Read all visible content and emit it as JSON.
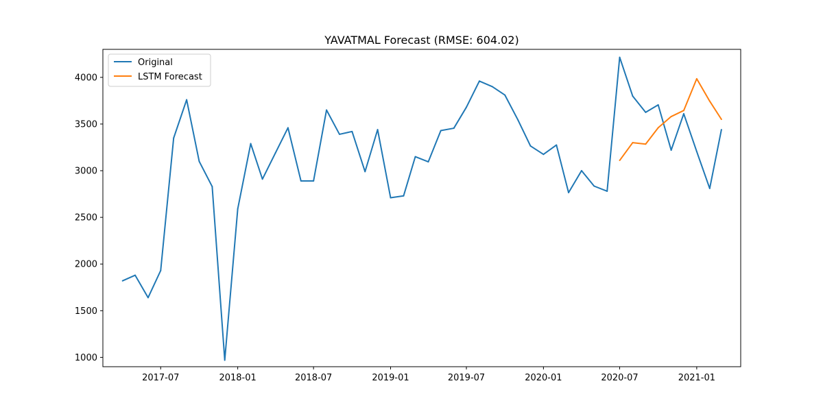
{
  "chart_data": {
    "type": "line",
    "title": "YAVATMAL Forecast (RMSE: 604.02)",
    "xlabel": "",
    "ylabel": "",
    "xlim": [
      "2017-02-13",
      "2021-04-16"
    ],
    "ylim": [
      900,
      4300
    ],
    "x_ticks": [
      "2017-07-01",
      "2018-01-01",
      "2018-07-01",
      "2019-01-01",
      "2019-07-01",
      "2020-01-01",
      "2020-07-01",
      "2021-01-01"
    ],
    "x_tick_labels": [
      "2017-07",
      "2018-01",
      "2018-07",
      "2019-01",
      "2019-07",
      "2020-01",
      "2020-07",
      "2021-01"
    ],
    "y_ticks": [
      1000,
      1500,
      2000,
      2500,
      3000,
      3500,
      4000
    ],
    "y_tick_labels": [
      "1000",
      "1500",
      "2000",
      "2500",
      "3000",
      "3500",
      "4000"
    ],
    "grid": false,
    "legend": {
      "placement": "top-left"
    },
    "series": [
      {
        "name": "Original",
        "color": "#1f77b4",
        "x": [
          "2017-04-01",
          "2017-05-01",
          "2017-06-01",
          "2017-07-01",
          "2017-08-01",
          "2017-09-01",
          "2017-10-01",
          "2017-11-01",
          "2017-12-01",
          "2018-01-01",
          "2018-02-01",
          "2018-03-01",
          "2018-04-01",
          "2018-05-01",
          "2018-06-01",
          "2018-07-01",
          "2018-08-01",
          "2018-09-01",
          "2018-10-01",
          "2018-11-01",
          "2018-12-01",
          "2019-01-01",
          "2019-02-01",
          "2019-03-01",
          "2019-04-01",
          "2019-05-01",
          "2019-06-01",
          "2019-07-01",
          "2019-08-01",
          "2019-09-01",
          "2019-10-01",
          "2019-11-01",
          "2019-12-01",
          "2020-01-01",
          "2020-02-01",
          "2020-03-01",
          "2020-04-01",
          "2020-05-01",
          "2020-06-01",
          "2020-07-01",
          "2020-08-01",
          "2020-09-01",
          "2020-10-01",
          "2020-11-01",
          "2020-12-01",
          "2021-01-01",
          "2021-02-01",
          "2021-03-01"
        ],
        "values": [
          1820,
          1880,
          1640,
          1930,
          3350,
          3760,
          3100,
          2830,
          970,
          2590,
          3290,
          2910,
          3190,
          3460,
          2890,
          2890,
          3650,
          3390,
          3420,
          2990,
          3440,
          2710,
          2730,
          3150,
          3095,
          3430,
          3455,
          3680,
          3960,
          3900,
          3810,
          3545,
          3265,
          3175,
          3275,
          2765,
          3000,
          2835,
          2780,
          4215,
          3800,
          3625,
          3705,
          3220,
          3610,
          3205,
          2810,
          3440
        ]
      },
      {
        "name": "LSTM Forecast",
        "color": "#ff7f0e",
        "x": [
          "2020-07-01",
          "2020-08-01",
          "2020-09-01",
          "2020-10-01",
          "2020-11-01",
          "2020-12-01",
          "2021-01-01",
          "2021-02-01",
          "2021-03-01"
        ],
        "values": [
          3110,
          3300,
          3285,
          3460,
          3580,
          3645,
          3985,
          3745,
          3550
        ]
      }
    ]
  }
}
